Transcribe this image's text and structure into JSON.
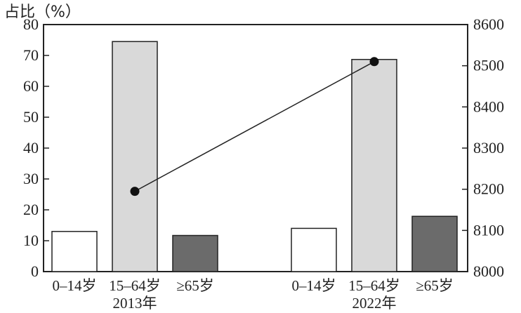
{
  "chart_data": {
    "type": "bar",
    "ylabel": "占比（%）",
    "y_left_ticks": [
      "0",
      "10",
      "20",
      "30",
      "40",
      "50",
      "60",
      "70",
      "80"
    ],
    "y_left_lim": [
      0,
      80
    ],
    "y_right_ticks": [
      "8000",
      "8100",
      "8200",
      "8300",
      "8400",
      "8500",
      "8600"
    ],
    "y_right_lim": [
      8000,
      8600
    ],
    "groups": [
      {
        "label": "2013年",
        "bars": [
          {
            "category": "0–14岁",
            "value": 13.0,
            "color": "#ffffff"
          },
          {
            "category": "15–64岁",
            "value": 74.5,
            "color": "#d9d9d9"
          },
          {
            "category": "≥65岁",
            "value": 11.7,
            "color": "#6b6b6b"
          }
        ],
        "line_value": 8195
      },
      {
        "label": "2022年",
        "bars": [
          {
            "category": "0–14岁",
            "value": 14.0,
            "color": "#ffffff"
          },
          {
            "category": "15–64岁",
            "value": 68.7,
            "color": "#d9d9d9"
          },
          {
            "category": "≥65岁",
            "value": 17.9,
            "color": "#6b6b6b"
          }
        ],
        "line_value": 8510
      }
    ],
    "grid": false,
    "legend": "none"
  }
}
